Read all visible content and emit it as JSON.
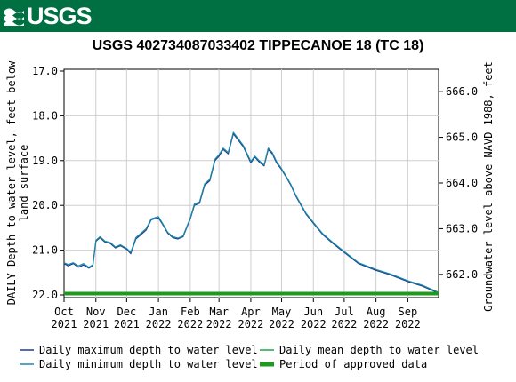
{
  "header": {
    "logo_text": "USGS",
    "logo_icon": "usgs-wave-icon",
    "brand_color": "#006f41"
  },
  "chart_data": {
    "type": "line",
    "title": "USGS 402734087033402 TIPPECANOE 18 (TC 18)",
    "ylabel_lines": [
      "DAILY Depth to water level, feet below",
      "land surface"
    ],
    "y2label": "Groundwater level above NAVD 1988, feet",
    "ylim": [
      22.0,
      17.0
    ],
    "y_inverted": true,
    "yticks": [
      "17.0",
      "18.0",
      "19.0",
      "20.0",
      "21.0",
      "22.0"
    ],
    "y2lim": [
      661.55,
      666.45
    ],
    "y2ticks": [
      "662.0",
      "663.0",
      "664.0",
      "665.0",
      "666.0"
    ],
    "x_domain": [
      "2021-10-01",
      "2022-10-01"
    ],
    "xticks": [
      {
        "month": "Oct",
        "year": "2021",
        "date": "2021-10-01"
      },
      {
        "month": "Nov",
        "year": "2021",
        "date": "2021-11-01"
      },
      {
        "month": "Dec",
        "year": "2021",
        "date": "2021-12-01"
      },
      {
        "month": "Jan",
        "year": "2022",
        "date": "2022-01-01"
      },
      {
        "month": "Feb",
        "year": "2022",
        "date": "2022-02-01"
      },
      {
        "month": "Mar",
        "year": "2022",
        "date": "2022-03-01"
      },
      {
        "month": "Apr",
        "year": "2022",
        "date": "2022-04-01"
      },
      {
        "month": "May",
        "year": "2022",
        "date": "2022-05-01"
      },
      {
        "month": "Jun",
        "year": "2022",
        "date": "2022-06-01"
      },
      {
        "month": "Jul",
        "year": "2022",
        "date": "2022-07-01"
      },
      {
        "month": "Aug",
        "year": "2022",
        "date": "2022-08-01"
      },
      {
        "month": "Sep",
        "year": "2022",
        "date": "2022-09-01"
      }
    ],
    "grid": true,
    "series": [
      {
        "name": "Daily maximum depth to water level",
        "color": "#1c3d8f",
        "x": [
          "2021-10-01",
          "2021-10-05",
          "2021-10-10",
          "2021-10-15",
          "2021-10-20",
          "2021-10-25",
          "2021-10-29",
          "2021-11-01",
          "2021-11-05",
          "2021-11-10",
          "2021-11-15",
          "2021-11-20",
          "2021-11-25",
          "2021-12-01",
          "2021-12-05",
          "2021-12-10",
          "2021-12-15",
          "2021-12-20",
          "2021-12-25",
          "2022-01-01",
          "2022-01-05",
          "2022-01-10",
          "2022-01-15",
          "2022-01-20",
          "2022-01-25",
          "2022-02-01",
          "2022-02-05",
          "2022-02-10",
          "2022-02-15",
          "2022-02-20",
          "2022-02-25",
          "2022-03-01",
          "2022-03-05",
          "2022-03-10",
          "2022-03-15",
          "2022-03-20",
          "2022-03-25",
          "2022-04-01",
          "2022-04-05",
          "2022-04-10",
          "2022-04-14",
          "2022-04-18",
          "2022-04-22",
          "2022-04-26",
          "2022-05-01",
          "2022-05-05",
          "2022-05-10",
          "2022-05-15",
          "2022-05-20",
          "2022-05-25",
          "2022-06-01",
          "2022-06-10",
          "2022-06-20",
          "2022-07-01",
          "2022-07-15",
          "2022-08-01",
          "2022-08-15",
          "2022-09-01",
          "2022-09-15",
          "2022-09-25",
          "2022-09-30"
        ],
        "y": [
          21.3,
          21.35,
          21.3,
          21.38,
          21.33,
          21.4,
          21.35,
          20.8,
          20.72,
          20.82,
          20.85,
          20.95,
          20.9,
          20.98,
          21.08,
          20.75,
          20.65,
          20.55,
          20.32,
          20.28,
          20.42,
          20.62,
          20.72,
          20.75,
          20.7,
          20.3,
          20.0,
          19.95,
          19.55,
          19.45,
          19.0,
          18.9,
          18.75,
          18.85,
          18.4,
          18.55,
          18.7,
          19.05,
          18.92,
          19.05,
          19.12,
          18.75,
          18.85,
          19.05,
          19.2,
          19.35,
          19.55,
          19.8,
          20.0,
          20.2,
          20.4,
          20.65,
          20.85,
          21.05,
          21.3,
          21.45,
          21.55,
          21.7,
          21.8,
          21.9,
          21.95
        ]
      },
      {
        "name": "Daily minimum depth to water level",
        "color": "#1a8aa8",
        "x": [
          "2021-10-01",
          "2021-10-05",
          "2021-10-10",
          "2021-10-15",
          "2021-10-20",
          "2021-10-25",
          "2021-10-29",
          "2021-11-01",
          "2021-11-05",
          "2021-11-10",
          "2021-11-15",
          "2021-11-20",
          "2021-11-25",
          "2021-12-01",
          "2021-12-05",
          "2021-12-10",
          "2021-12-15",
          "2021-12-20",
          "2021-12-25",
          "2022-01-01",
          "2022-01-05",
          "2022-01-10",
          "2022-01-15",
          "2022-01-20",
          "2022-01-25",
          "2022-02-01",
          "2022-02-05",
          "2022-02-10",
          "2022-02-15",
          "2022-02-20",
          "2022-02-25",
          "2022-03-01",
          "2022-03-05",
          "2022-03-10",
          "2022-03-15",
          "2022-03-20",
          "2022-03-25",
          "2022-04-01",
          "2022-04-05",
          "2022-04-10",
          "2022-04-14",
          "2022-04-18",
          "2022-04-22",
          "2022-04-26",
          "2022-05-01",
          "2022-05-05",
          "2022-05-10",
          "2022-05-15",
          "2022-05-20",
          "2022-05-25",
          "2022-06-01",
          "2022-06-10",
          "2022-06-20",
          "2022-07-01",
          "2022-07-15",
          "2022-08-01",
          "2022-08-15",
          "2022-09-01",
          "2022-09-15",
          "2022-09-25",
          "2022-09-30"
        ],
        "y": [
          21.28,
          21.32,
          21.28,
          21.35,
          21.3,
          21.38,
          21.33,
          20.78,
          20.7,
          20.8,
          20.83,
          20.93,
          20.88,
          20.96,
          21.05,
          20.72,
          20.62,
          20.52,
          20.3,
          20.25,
          20.4,
          20.6,
          20.7,
          20.73,
          20.68,
          20.28,
          19.97,
          19.92,
          19.52,
          19.42,
          18.97,
          18.87,
          18.72,
          18.82,
          18.37,
          18.52,
          18.67,
          19.02,
          18.9,
          19.02,
          19.1,
          18.72,
          18.82,
          19.02,
          19.18,
          19.33,
          19.53,
          19.78,
          19.98,
          20.18,
          20.38,
          20.63,
          20.83,
          21.03,
          21.28,
          21.43,
          21.53,
          21.68,
          21.78,
          21.88,
          21.93
        ]
      },
      {
        "name": "Daily mean depth to water level",
        "color": "#22a34a"
      },
      {
        "name": "Period of approved data",
        "color": "#1f9a1f",
        "y": 21.97,
        "x_range": [
          "2021-10-01",
          "2022-10-01"
        ]
      }
    ]
  }
}
